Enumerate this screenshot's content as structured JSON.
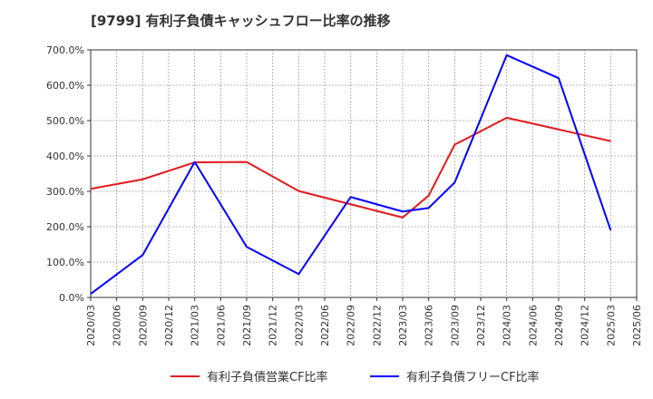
{
  "chart_data": {
    "type": "line",
    "title": "[9799]  有利子負債キャッシュフロー比率の推移",
    "xlabel": "",
    "ylabel": "",
    "x": [
      "2020/03",
      "2020/06",
      "2020/09",
      "2020/12",
      "2021/03",
      "2021/06",
      "2021/09",
      "2021/12",
      "2022/03",
      "2022/06",
      "2022/09",
      "2022/12",
      "2023/03",
      "2023/06",
      "2023/09",
      "2023/12",
      "2024/03",
      "2024/06",
      "2024/09",
      "2024/12",
      "2025/03",
      "2025/06"
    ],
    "ylim": [
      0,
      700
    ],
    "yticks": [
      0,
      100,
      200,
      300,
      400,
      500,
      600,
      700
    ],
    "ytick_labels": [
      "0.0%",
      "100.0%",
      "200.0%",
      "300.0%",
      "400.0%",
      "500.0%",
      "600.0%",
      "700.0%"
    ],
    "grid": true,
    "legend_position": "bottom",
    "series": [
      {
        "name": "有利子負債営業CF比率",
        "color": "#e31a1c",
        "points": [
          {
            "x": "2020/03",
            "y": 307
          },
          {
            "x": "2020/09",
            "y": 334
          },
          {
            "x": "2021/03",
            "y": 382
          },
          {
            "x": "2021/09",
            "y": 383
          },
          {
            "x": "2022/03",
            "y": 301
          },
          {
            "x": "2023/03",
            "y": 226
          },
          {
            "x": "2023/06",
            "y": 288
          },
          {
            "x": "2023/09",
            "y": 432
          },
          {
            "x": "2024/03",
            "y": 508
          },
          {
            "x": "2024/09",
            "y": 475
          },
          {
            "x": "2025/03",
            "y": 442
          }
        ]
      },
      {
        "name": "有利子負債フリーCF比率",
        "color": "#0000ff",
        "points": [
          {
            "x": "2020/03",
            "y": 10
          },
          {
            "x": "2020/09",
            "y": 120
          },
          {
            "x": "2021/03",
            "y": 383
          },
          {
            "x": "2021/09",
            "y": 143
          },
          {
            "x": "2022/03",
            "y": 66
          },
          {
            "x": "2022/09",
            "y": 284
          },
          {
            "x": "2023/03",
            "y": 243
          },
          {
            "x": "2023/06",
            "y": 253
          },
          {
            "x": "2023/09",
            "y": 325
          },
          {
            "x": "2024/03",
            "y": 685
          },
          {
            "x": "2024/09",
            "y": 620
          },
          {
            "x": "2025/03",
            "y": 190
          }
        ]
      }
    ]
  }
}
